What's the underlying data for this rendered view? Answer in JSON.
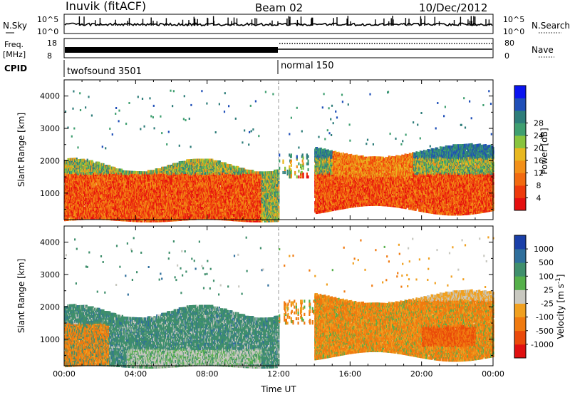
{
  "header": {
    "station": "Inuvik (fitACF)",
    "beam": "Beam 02",
    "date": "10/Dec/2012"
  },
  "strip_labels": {
    "nsky": "N.Sky",
    "nsky_ticks": [
      "10^5",
      "10^0"
    ],
    "nsearch": "N.Search",
    "nsearch_ticks": [
      "10^5",
      "10^0"
    ],
    "freq_line1": "Freq.",
    "freq_line2": "[MHz]",
    "freq_ticks": [
      "18",
      "8"
    ],
    "nave": "Nave",
    "nave_ticks": [
      "80",
      "0"
    ],
    "cpid": "CPID",
    "cpid_before": "twofsound 3501",
    "cpid_after": "normal 150"
  },
  "chart_data": [
    {
      "type": "heatmap",
      "panel": "power",
      "xlabel": "",
      "ylabel": "Slant Range [km]",
      "xlim": [
        0,
        24
      ],
      "ylim": [
        180,
        4500
      ],
      "yticks": [
        "1000",
        "2000",
        "3000",
        "4000"
      ],
      "colorbar": {
        "label": "Power [dB]",
        "ticks": [
          "4",
          "8",
          "12",
          "16",
          "20",
          "24",
          "28"
        ],
        "colors": [
          "#0a14f0",
          "#1f4fb8",
          "#2e7d7a",
          "#3f9f70",
          "#88c43e",
          "#e8b820",
          "#f39018",
          "#f26a10",
          "#ee3a0c",
          "#e50f0f"
        ]
      }
    },
    {
      "type": "heatmap",
      "panel": "velocity",
      "xlabel": "Time UT",
      "ylabel": "Slant Range [km]",
      "xlim": [
        0,
        24
      ],
      "ylim": [
        180,
        4500
      ],
      "xticks": [
        "00:00",
        "04:00",
        "08:00",
        "12:00",
        "16:00",
        "20:00",
        "00:00"
      ],
      "yticks": [
        "1000",
        "2000",
        "3000",
        "4000"
      ],
      "colorbar": {
        "label": "Velocity [m s",
        "label_sup": "-1",
        "label_end": "]",
        "ticks": [
          "1000",
          "500",
          "100",
          "25",
          "-25",
          "-100",
          "-500",
          "-1000"
        ],
        "colors": [
          "#1a3fa8",
          "#2f6f9c",
          "#3f8f6c",
          "#55b04a",
          "#c8c8c0",
          "#f0a020",
          "#f07a10",
          "#ea4a0a",
          "#e01010"
        ]
      }
    }
  ]
}
